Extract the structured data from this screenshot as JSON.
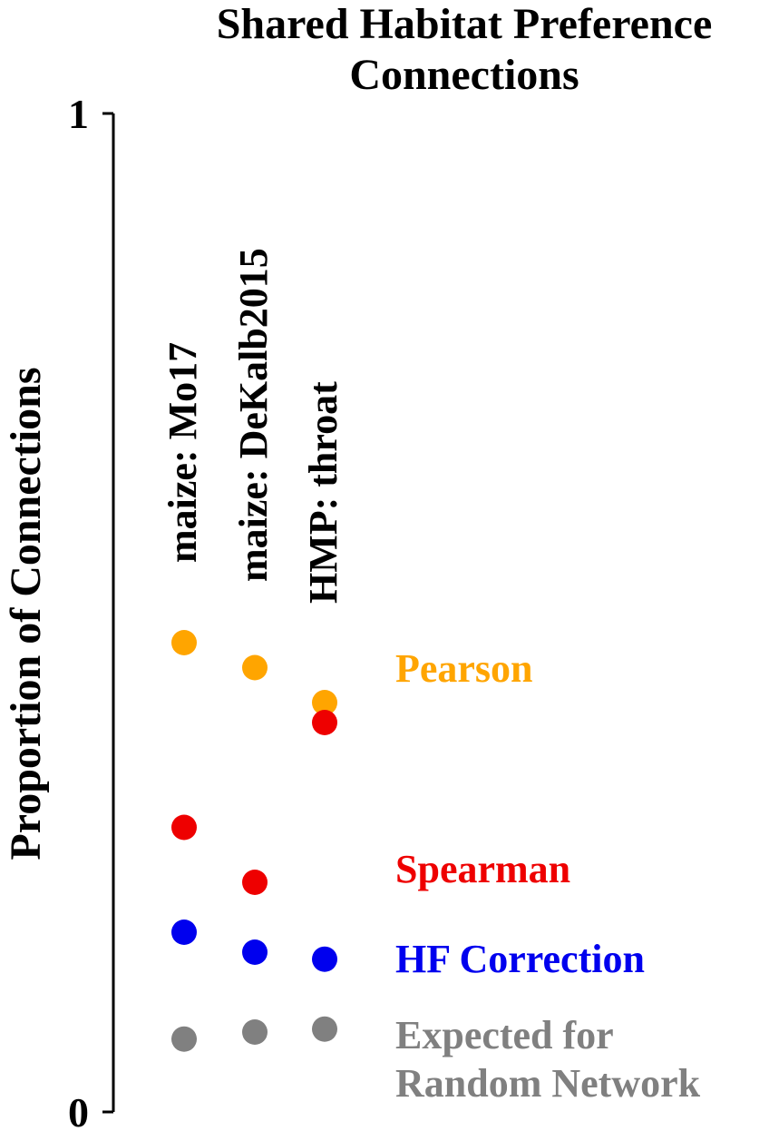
{
  "chart_data": {
    "type": "scatter",
    "title_lines": [
      "Shared Habitat Preference",
      "Connections"
    ],
    "ylabel": "Proportion of Connections",
    "ylim": [
      0,
      1
    ],
    "yticks": [
      "0",
      "1"
    ],
    "categories": [
      "maize: Mo17",
      "maize: DeKalb2015",
      "HMP: throat"
    ],
    "series": [
      {
        "name": "Pearson",
        "color": "#FFA500",
        "values": [
          0.47,
          0.445,
          0.41
        ]
      },
      {
        "name": "Spearman",
        "color": "#EE0000",
        "values": [
          0.285,
          0.23,
          0.39
        ]
      },
      {
        "name": "HF Correction",
        "color": "#0000EE",
        "values": [
          0.18,
          0.16,
          0.153
        ]
      },
      {
        "name": "Expected for Random Network",
        "color": "#808080",
        "values": [
          0.073,
          0.08,
          0.083
        ]
      }
    ],
    "legend_lines": [
      [
        "Pearson"
      ],
      [
        "Spearman"
      ],
      [
        "HF Correction"
      ],
      [
        "Expected for",
        "Random Network"
      ]
    ]
  }
}
